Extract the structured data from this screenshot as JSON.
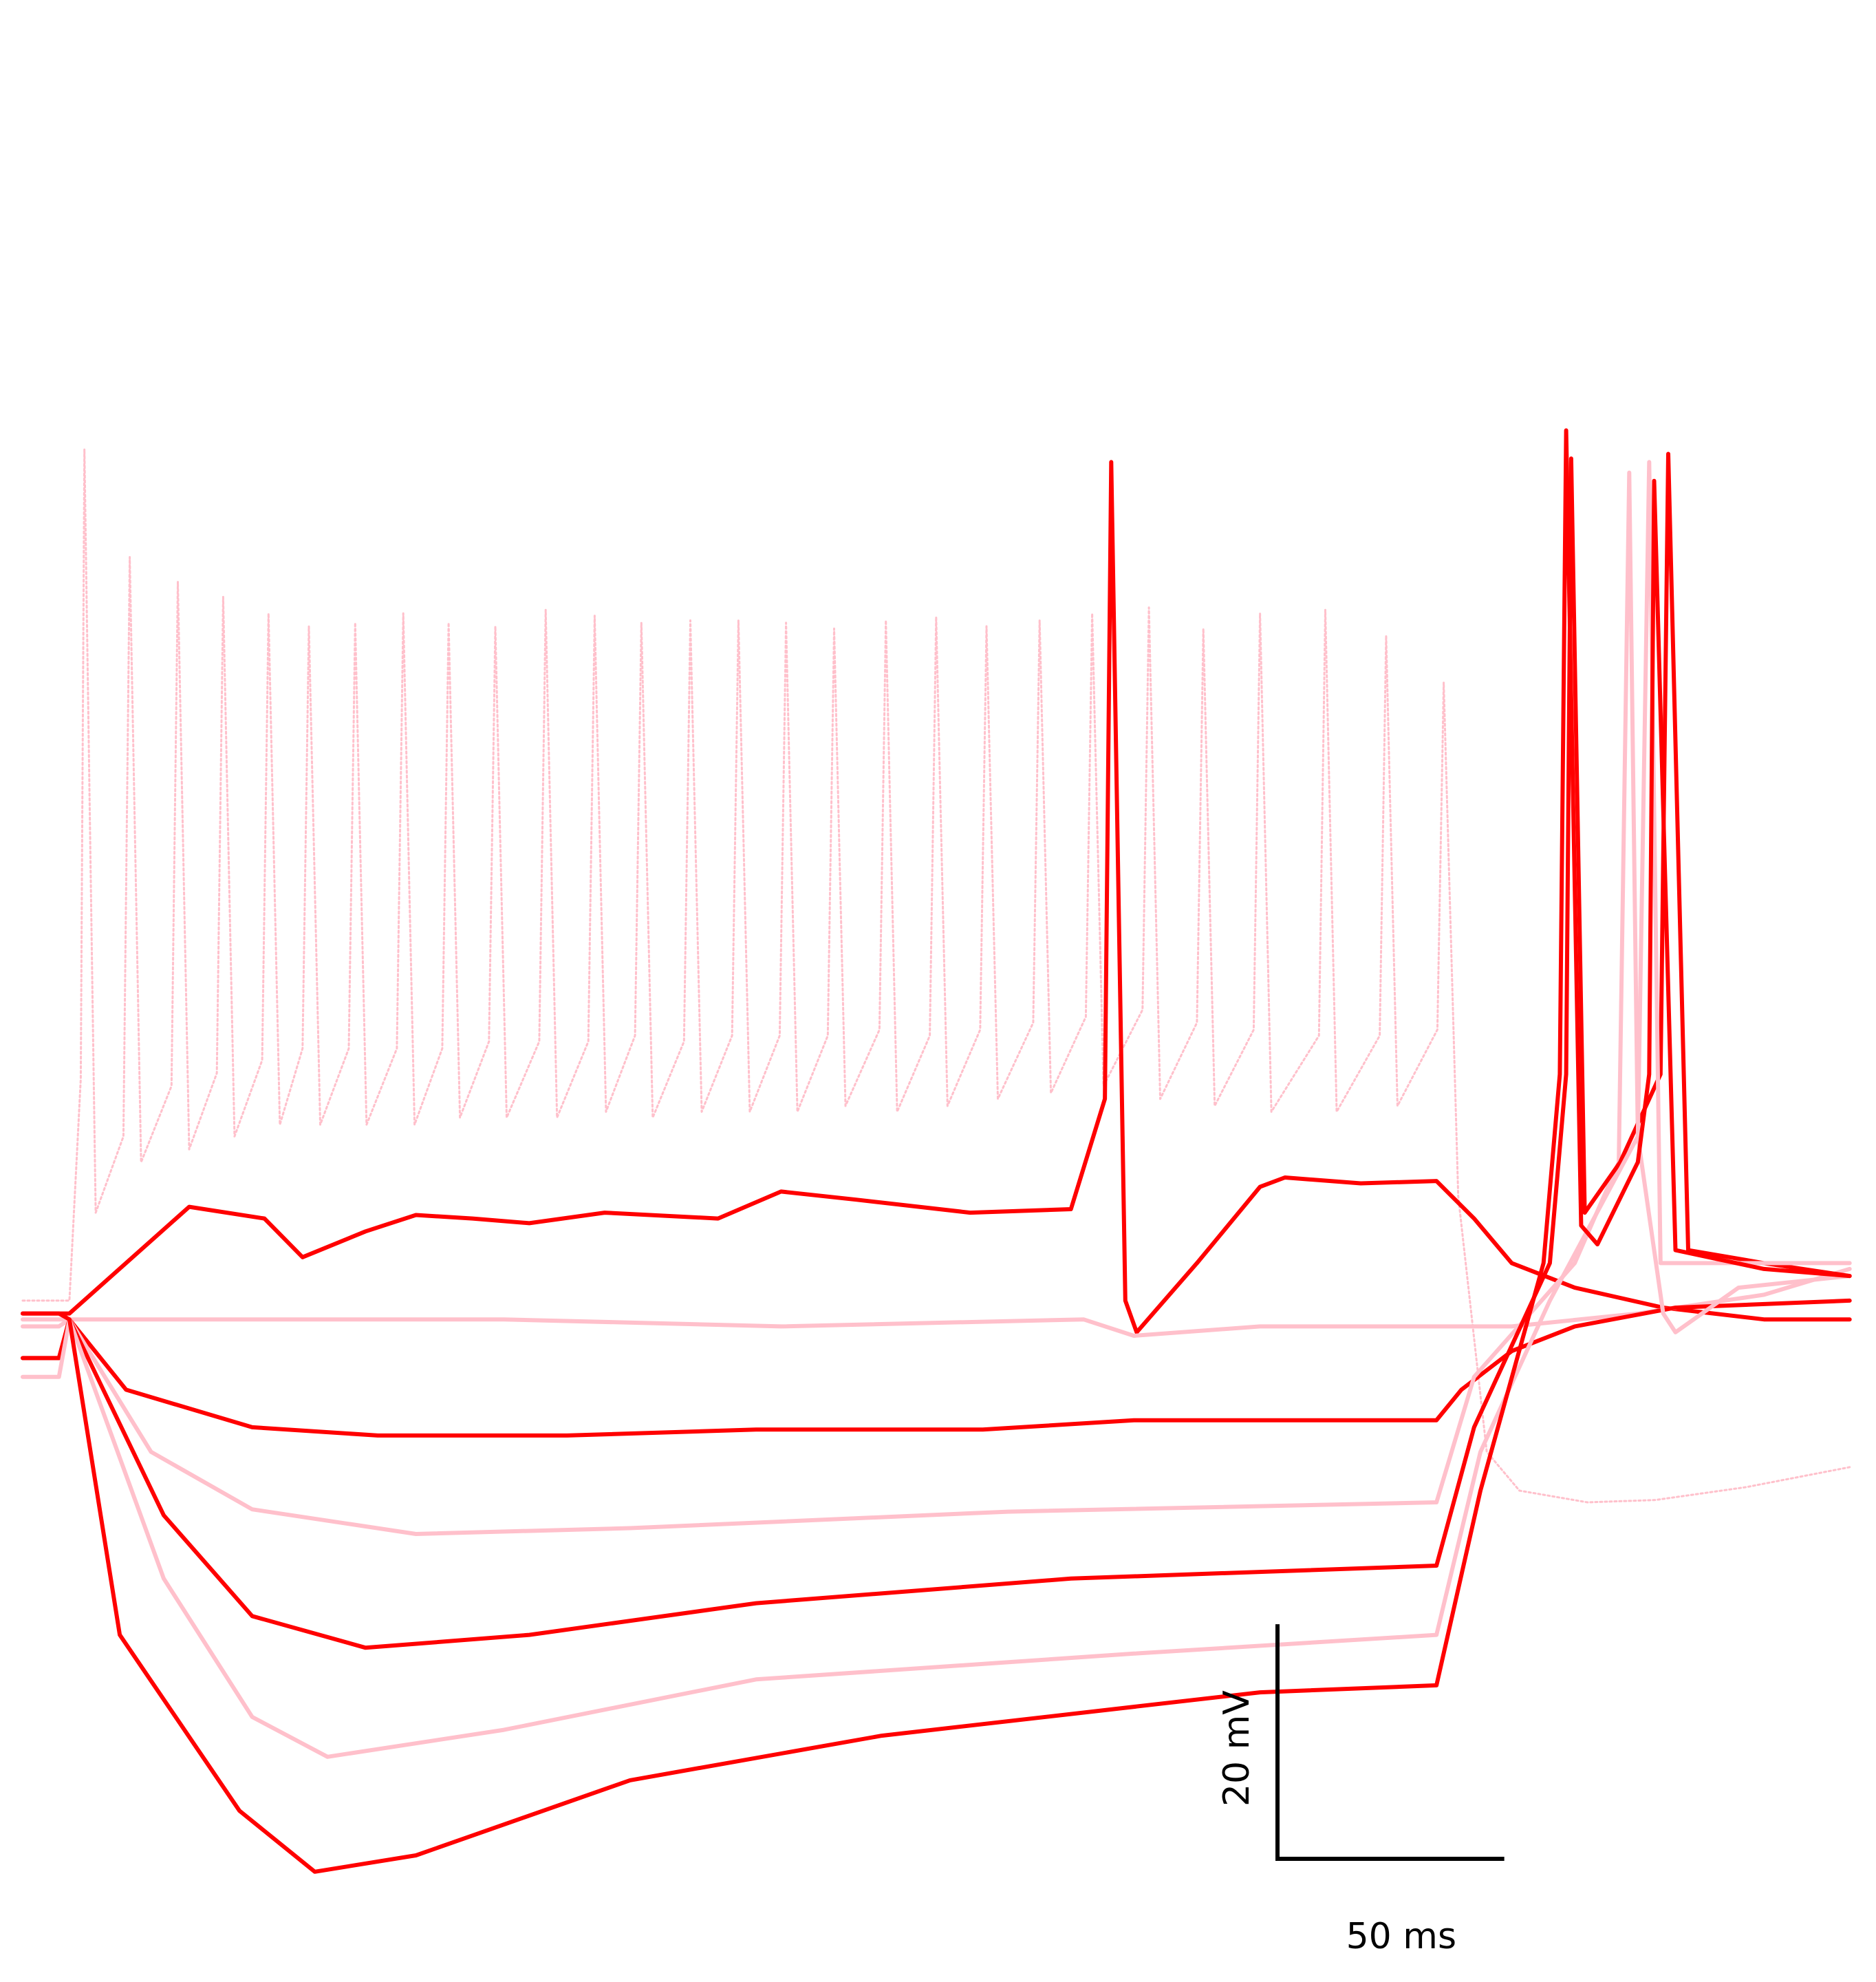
{
  "chart_data": {
    "type": "line",
    "xlim": [
      0,
      403
    ],
    "ylim": [
      -122,
      47
    ],
    "scale_bar": {
      "x": 50,
      "y": 20,
      "x_label": "50 ms",
      "y_label": "20 mV"
    },
    "series": [
      {
        "color": "#ffc0cb",
        "style": "dotted",
        "x": [
          0,
          10.3,
          12.8,
          13.6,
          16.1,
          22.2,
          23.6,
          26.1,
          32.8,
          34.2,
          36.7,
          42.8,
          44.2,
          46.7,
          52.8,
          54.2,
          56.7,
          61.7,
          63.1,
          65.6,
          71.9,
          73.3,
          75.8,
          82.5,
          83.9,
          86.4,
          92.5,
          93.9,
          96.4,
          102.8,
          104.2,
          106.7,
          113.9,
          115.3,
          117.8,
          124.7,
          126.1,
          128.6,
          135.0,
          136.4,
          138.9,
          145.8,
          147.2,
          149.7,
          156.4,
          157.8,
          160.3,
          166.9,
          168.3,
          170.8,
          177.5,
          178.9,
          181.4,
          188.9,
          190.3,
          192.8,
          200.0,
          201.4,
          203.9,
          211.1,
          212.5,
          215.0,
          222.8,
          224.2,
          226.7,
          234.4,
          235.8,
          238.3,
          246.9,
          248.3,
          250.8,
          258.9,
          260.3,
          262.8,
          271.4,
          272.8,
          275.3,
          285.8,
          287.2,
          289.7,
          299.2,
          300.6,
          303.1,
          311.9,
          313.3,
          316.5,
          322.8,
          330,
          345,
          360,
          380,
          402.8
        ],
        "values": [
          -63.9,
          -63.9,
          -45,
          8.7,
          -56.4,
          -49.9,
          -0.5,
          -52.1,
          -45.6,
          -2.6,
          -51.0,
          -44.5,
          -3.9,
          -49.9,
          -43.4,
          -5.3,
          -48.9,
          -42.4,
          -6.4,
          -48.9,
          -42.4,
          -6.1,
          -48.9,
          -42.4,
          -5.3,
          -48.9,
          -42.4,
          -6.1,
          -48.3,
          -41.8,
          -6.4,
          -48.3,
          -41.8,
          -5.0,
          -48.3,
          -41.8,
          -5.5,
          -47.8,
          -41.3,
          -6.1,
          -48.3,
          -41.8,
          -5.9,
          -47.8,
          -41.3,
          -5.9,
          -47.8,
          -41.3,
          -6.1,
          -47.8,
          -41.3,
          -6.6,
          -47.3,
          -40.8,
          -5.9,
          -47.8,
          -41.3,
          -5.6,
          -47.3,
          -40.8,
          -6.4,
          -46.7,
          -40.2,
          -5.9,
          -46.2,
          -39.7,
          -5.3,
          -45.6,
          -39.1,
          -4.8,
          -46.7,
          -40.2,
          -6.6,
          -47.3,
          -40.8,
          -5.3,
          -47.8,
          -41.3,
          -5.0,
          -47.8,
          -41.3,
          -7.2,
          -47.3,
          -40.8,
          -11.2,
          -55,
          -76.8,
          -80.1,
          -81.1,
          -80.9,
          -79.8,
          -78.1
        ]
      },
      {
        "color": "#ff0000",
        "x": [
          0,
          10.3,
          36.7,
          53.3,
          61.7,
          75.6,
          86.7,
          99.2,
          111.7,
          128.3,
          153.3,
          167.2,
          183.9,
          208.9,
          231.1,
          238.6,
          240.0,
          243.1,
          245.6,
          258.9,
          272.8,
          278.3,
          295,
          311.7,
          320,
          328.3,
          342.2,
          361.7,
          383.9,
          402.8
        ],
        "values": [
          -65,
          -65,
          -55.9,
          -56.9,
          -60.2,
          -58.0,
          -56.6,
          -56.9,
          -57.3,
          -56.4,
          -56.9,
          -54.6,
          -55.3,
          -56.4,
          -56.1,
          -46.7,
          7.6,
          -63.9,
          -66.6,
          -60.7,
          -54.2,
          -53.4,
          -53.9,
          -53.7,
          -56.9,
          -60.7,
          -62.8,
          -64.5,
          -65.5,
          -65.5
        ]
      },
      {
        "color": "#ffc0cb",
        "x": [
          0,
          10.3,
          39.4,
          106.1,
          167.2,
          233.9,
          245,
          272.8,
          328.3,
          356.1,
          383.9,
          402.8
        ],
        "values": [
          -65.5,
          -65.5,
          -65.5,
          -65.5,
          -66.1,
          -65.5,
          -66.9,
          -66.1,
          -66.1,
          -65.0,
          -63.4,
          -61.2
        ]
      },
      {
        "color": "#ff0000",
        "x": [
          0,
          8.0,
          10.3,
          22.8,
          50.6,
          78.3,
          120,
          161.7,
          211.7,
          245,
          311.7,
          317.2,
          328.3,
          342.2,
          364.4,
          402.8
        ],
        "values": [
          -68.8,
          -68.8,
          -65.5,
          -71.5,
          -74.7,
          -75.4,
          -75.4,
          -74.9,
          -74.9,
          -74.1,
          -74.1,
          -71.5,
          -68.2,
          -66.1,
          -64.5,
          -63.9
        ]
      },
      {
        "color": "#ffc0cb",
        "x": [
          0,
          8.0,
          10.3,
          28.3,
          50.6,
          86.7,
          133.9,
          217.2,
          311.7,
          320,
          342.2,
          351.9,
          354.2,
          356.1,
          361.7,
          364.4,
          378.3,
          402.8
        ],
        "values": [
          -66.1,
          -66.1,
          -65.5,
          -76.8,
          -81.7,
          -83.8,
          -83.3,
          -81.9,
          -81.1,
          -70.4,
          -60.7,
          -52.1,
          6.7,
          -49.9,
          -65.0,
          -66.6,
          -62.8,
          -61.8
        ]
      },
      {
        "color": "#ff0000",
        "x": [
          0,
          8.0,
          10.3,
          31.1,
          50.6,
          75.6,
          111.7,
          161.7,
          231.1,
          311.7,
          320,
          336.7,
          340.3,
          341.4,
          344.4,
          352.2,
          361.1,
          362.8,
          367.2,
          383.9,
          402.8
        ],
        "values": [
          -68.8,
          -68.8,
          -65.5,
          -82.2,
          -90.8,
          -93.5,
          -92.4,
          -89.7,
          -87.6,
          -86.5,
          -74.7,
          -60.7,
          -44.6,
          7.9,
          -56.4,
          -52.1,
          -44.6,
          8.3,
          -59.6,
          -60.7,
          -61.8
        ]
      },
      {
        "color": "#ffc0cb",
        "x": [
          0,
          8.0,
          10.3,
          31.1,
          50.6,
          67.2,
          106.1,
          161.7,
          245,
          311.7,
          321.4,
          336.7,
          356.1,
          358.6,
          361.1,
          383.9,
          402.8
        ],
        "values": [
          -70.4,
          -70.4,
          -65.5,
          -87.6,
          -99.4,
          -102.8,
          -100.5,
          -96.2,
          -94.0,
          -92.4,
          -76.8,
          -63.9,
          -49.9,
          7.6,
          -60.7,
          -60.7,
          -60.7
        ]
      },
      {
        "color": "#ff0000",
        "x": [
          0,
          8.0,
          10.3,
          21.4,
          47.8,
          64.4,
          86.7,
          133.9,
          189.4,
          272.8,
          311.7,
          321.4,
          335.3,
          338.9,
          340.3,
          343.6,
          347.2,
          356.1,
          358.6,
          359.7,
          364.4,
          383.9,
          402.8
        ],
        "values": [
          -65,
          -65,
          -65.5,
          -92.4,
          -107.4,
          -112.6,
          -111.2,
          -104.8,
          -101.0,
          -97.3,
          -96.7,
          -80.1,
          -60.7,
          -44.6,
          10.3,
          -57.5,
          -59.1,
          -52.1,
          -44.6,
          6.0,
          -59.6,
          -61.2,
          -61.8
        ]
      }
    ]
  }
}
